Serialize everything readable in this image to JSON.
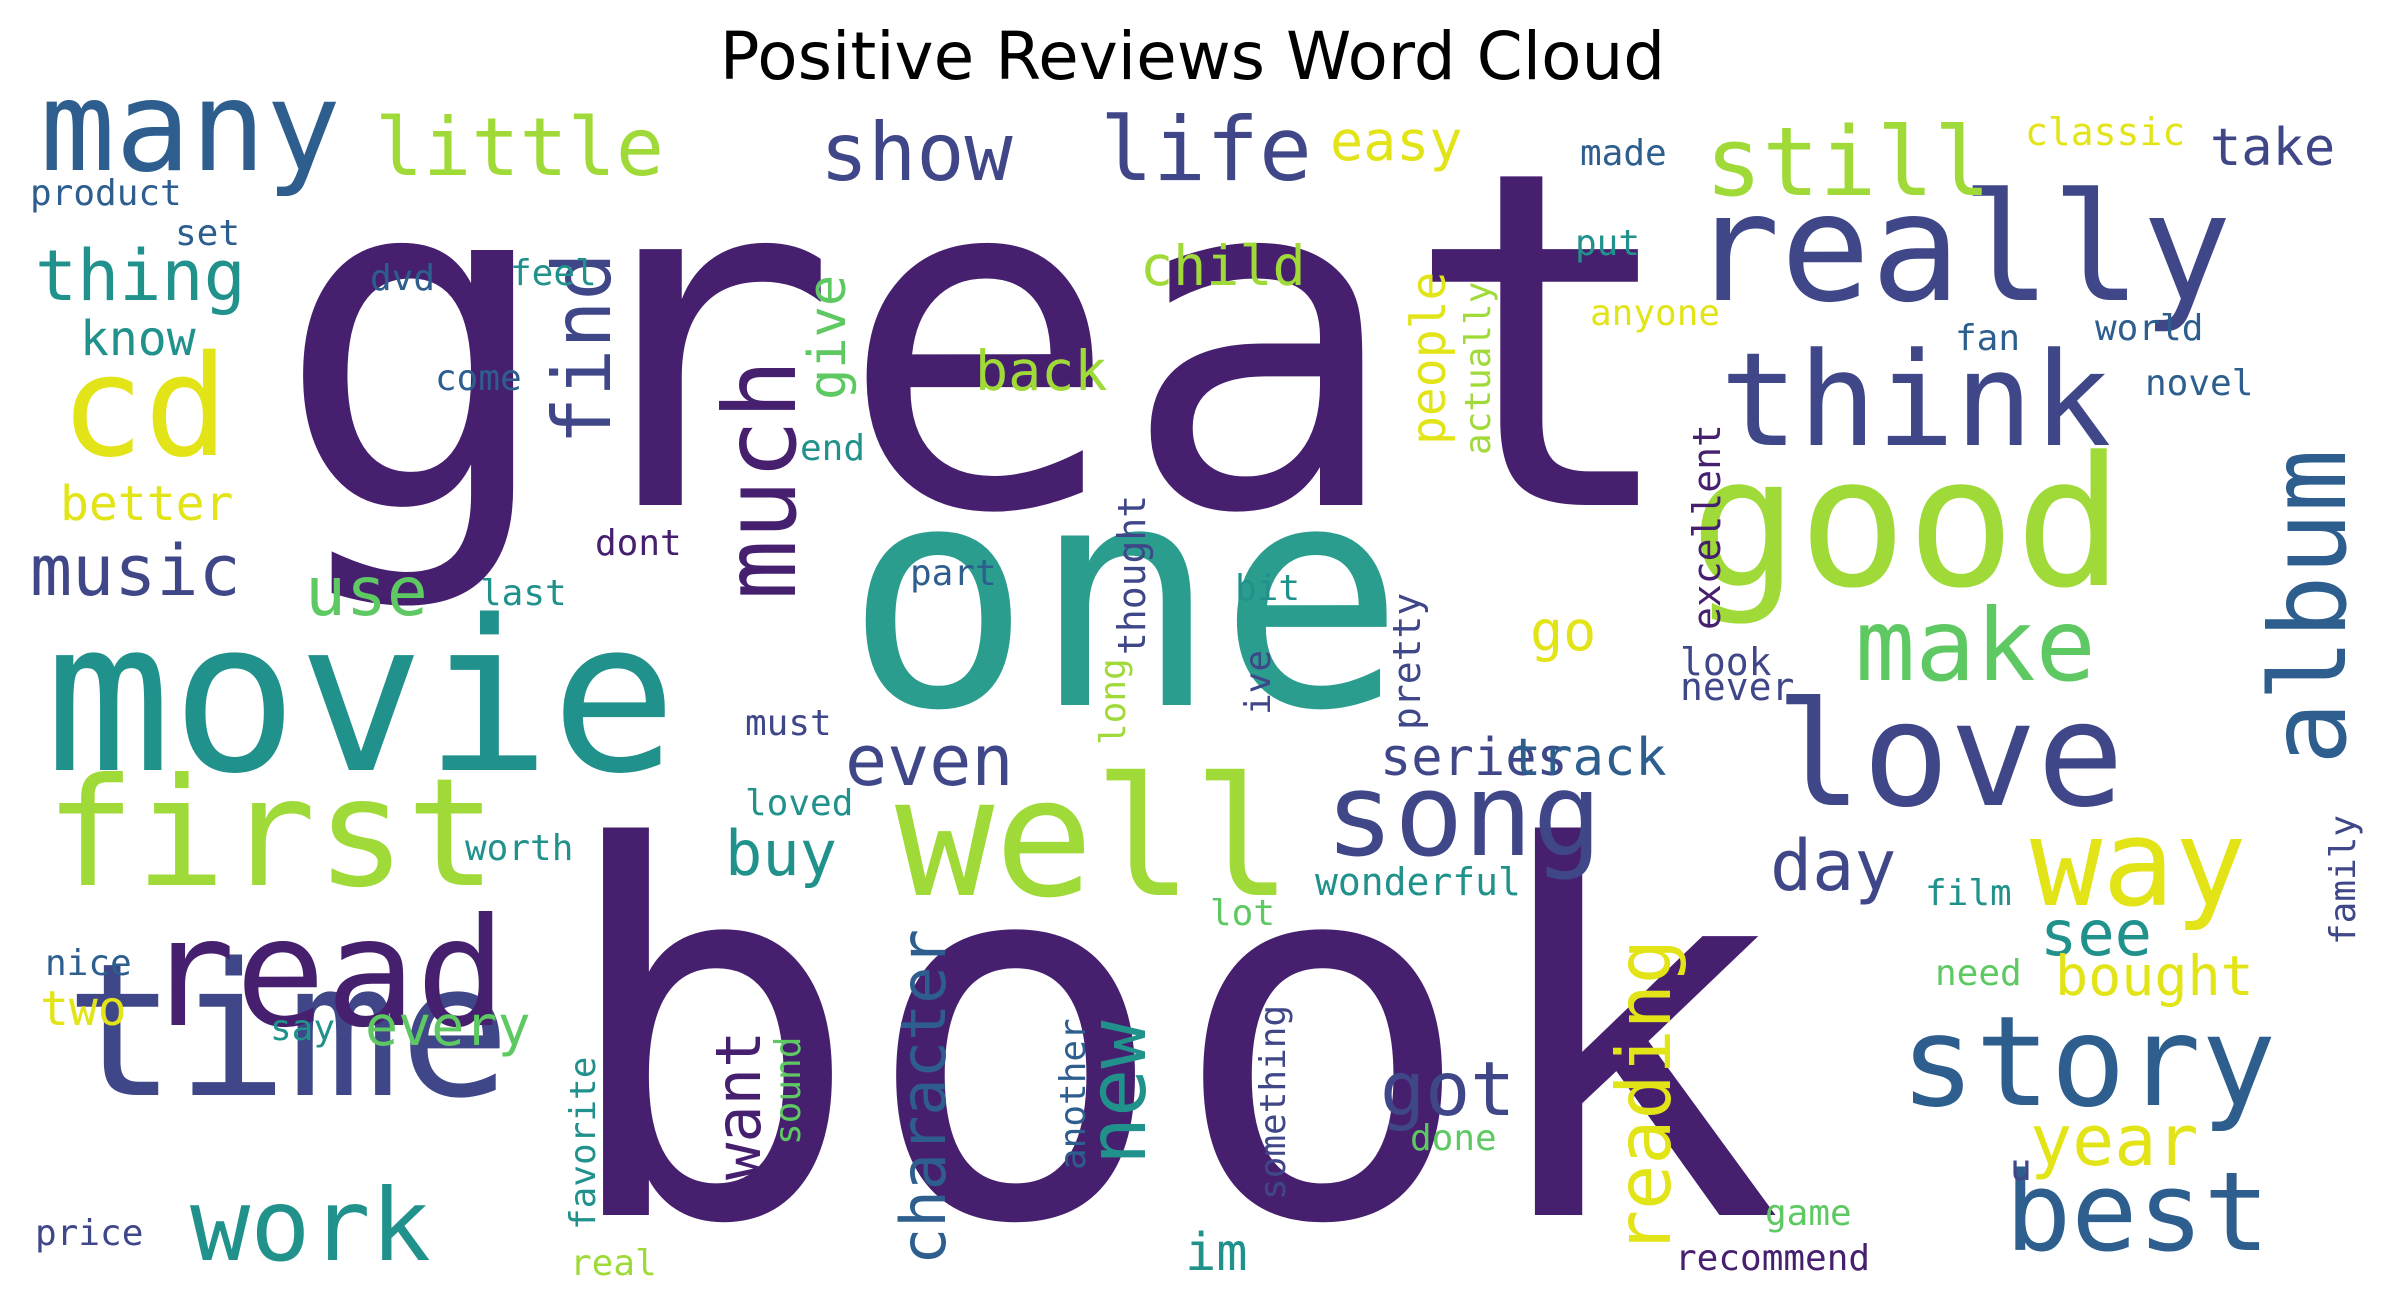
{
  "title": "Positive Reviews Word Cloud",
  "palette": {
    "dark_purple": "#46206f",
    "purple": "#3f4788",
    "blue": "#2d5e8e",
    "teal": "#21918c",
    "sea_green": "#2a9d8f",
    "green": "#5ec962",
    "lime": "#a0da39",
    "yellow": "#e2e418"
  },
  "words": [
    {
      "text": "great",
      "color": "dark_purple"
    },
    {
      "text": "book",
      "color": "dark_purple"
    },
    {
      "text": "one",
      "color": "sea_green"
    },
    {
      "text": "movie",
      "color": "teal"
    },
    {
      "text": "time",
      "color": "purple"
    },
    {
      "text": "first",
      "color": "lime"
    },
    {
      "text": "read",
      "color": "dark_purple"
    },
    {
      "text": "well",
      "color": "lime"
    },
    {
      "text": "good",
      "color": "lime"
    },
    {
      "text": "really",
      "color": "purple"
    },
    {
      "text": "love",
      "color": "purple"
    },
    {
      "text": "think",
      "color": "purple"
    },
    {
      "text": "story",
      "color": "blue"
    },
    {
      "text": "many",
      "color": "blue"
    },
    {
      "text": "cd",
      "color": "yellow"
    },
    {
      "text": "way",
      "color": "yellow"
    },
    {
      "text": "best",
      "color": "blue"
    },
    {
      "text": "song",
      "color": "purple"
    },
    {
      "text": "album",
      "color": "blue"
    },
    {
      "text": "still",
      "color": "lime"
    },
    {
      "text": "work",
      "color": "teal"
    },
    {
      "text": "little",
      "color": "lime"
    },
    {
      "text": "make",
      "color": "green"
    },
    {
      "text": "life",
      "color": "purple"
    },
    {
      "text": "show",
      "color": "purple"
    },
    {
      "text": "much",
      "color": "dark_purple"
    },
    {
      "text": "thing",
      "color": "teal"
    },
    {
      "text": "music",
      "color": "purple"
    },
    {
      "text": "find",
      "color": "purple"
    },
    {
      "text": "got",
      "color": "purple"
    },
    {
      "text": "new",
      "color": "teal"
    },
    {
      "text": "even",
      "color": "purple"
    },
    {
      "text": "day",
      "color": "purple"
    },
    {
      "text": "reading",
      "color": "yellow"
    },
    {
      "text": "character",
      "color": "blue"
    },
    {
      "text": "year",
      "color": "yellow"
    },
    {
      "text": "buy",
      "color": "teal"
    },
    {
      "text": "see",
      "color": "teal"
    },
    {
      "text": "use",
      "color": "green"
    },
    {
      "text": "back",
      "color": "lime"
    },
    {
      "text": "child",
      "color": "lime"
    },
    {
      "text": "want",
      "color": "dark_purple"
    },
    {
      "text": "every",
      "color": "green"
    },
    {
      "text": "bought",
      "color": "yellow"
    },
    {
      "text": "series",
      "color": "purple"
    },
    {
      "text": "track",
      "color": "blue"
    },
    {
      "text": "know",
      "color": "teal"
    },
    {
      "text": "better",
      "color": "yellow"
    },
    {
      "text": "two",
      "color": "yellow"
    },
    {
      "text": "easy",
      "color": "yellow"
    },
    {
      "text": "take",
      "color": "purple"
    },
    {
      "text": "give",
      "color": "green"
    },
    {
      "text": "people",
      "color": "yellow"
    },
    {
      "text": "im",
      "color": "teal"
    },
    {
      "text": "go",
      "color": "yellow"
    },
    {
      "text": "wonderful",
      "color": "teal"
    },
    {
      "text": "excellent",
      "color": "dark_purple"
    },
    {
      "text": "thought",
      "color": "purple"
    },
    {
      "text": "pretty",
      "color": "purple"
    },
    {
      "text": "look",
      "color": "purple"
    },
    {
      "text": "never",
      "color": "purple"
    },
    {
      "text": "end",
      "color": "teal"
    },
    {
      "text": "dont",
      "color": "dark_purple"
    },
    {
      "text": "last",
      "color": "teal"
    },
    {
      "text": "part",
      "color": "blue"
    },
    {
      "text": "bit",
      "color": "teal"
    },
    {
      "text": "must",
      "color": "purple"
    },
    {
      "text": "loved",
      "color": "teal"
    },
    {
      "text": "worth",
      "color": "teal"
    },
    {
      "text": "lot",
      "color": "green"
    },
    {
      "text": "film",
      "color": "teal"
    },
    {
      "text": "need",
      "color": "green"
    },
    {
      "text": "done",
      "color": "green"
    },
    {
      "text": "game",
      "color": "green"
    },
    {
      "text": "recommend",
      "color": "dark_purple"
    },
    {
      "text": "u",
      "color": "purple"
    },
    {
      "text": "classic",
      "color": "yellow"
    },
    {
      "text": "made",
      "color": "blue"
    },
    {
      "text": "product",
      "color": "blue"
    },
    {
      "text": "set",
      "color": "blue"
    },
    {
      "text": "dvd",
      "color": "blue"
    },
    {
      "text": "feel",
      "color": "teal"
    },
    {
      "text": "come",
      "color": "blue"
    },
    {
      "text": "put",
      "color": "teal"
    },
    {
      "text": "anyone",
      "color": "yellow"
    },
    {
      "text": "fan",
      "color": "blue"
    },
    {
      "text": "world",
      "color": "blue"
    },
    {
      "text": "novel",
      "color": "blue"
    },
    {
      "text": "actually",
      "color": "lime"
    },
    {
      "text": "nice",
      "color": "blue"
    },
    {
      "text": "say",
      "color": "teal"
    },
    {
      "text": "price",
      "color": "purple"
    },
    {
      "text": "real",
      "color": "lime"
    },
    {
      "text": "favorite",
      "color": "teal"
    },
    {
      "text": "sound",
      "color": "green"
    },
    {
      "text": "another",
      "color": "blue"
    },
    {
      "text": "something",
      "color": "purple"
    },
    {
      "text": "long",
      "color": "lime"
    },
    {
      "text": "ive",
      "color": "purple"
    },
    {
      "text": "family",
      "color": "purple"
    }
  ]
}
